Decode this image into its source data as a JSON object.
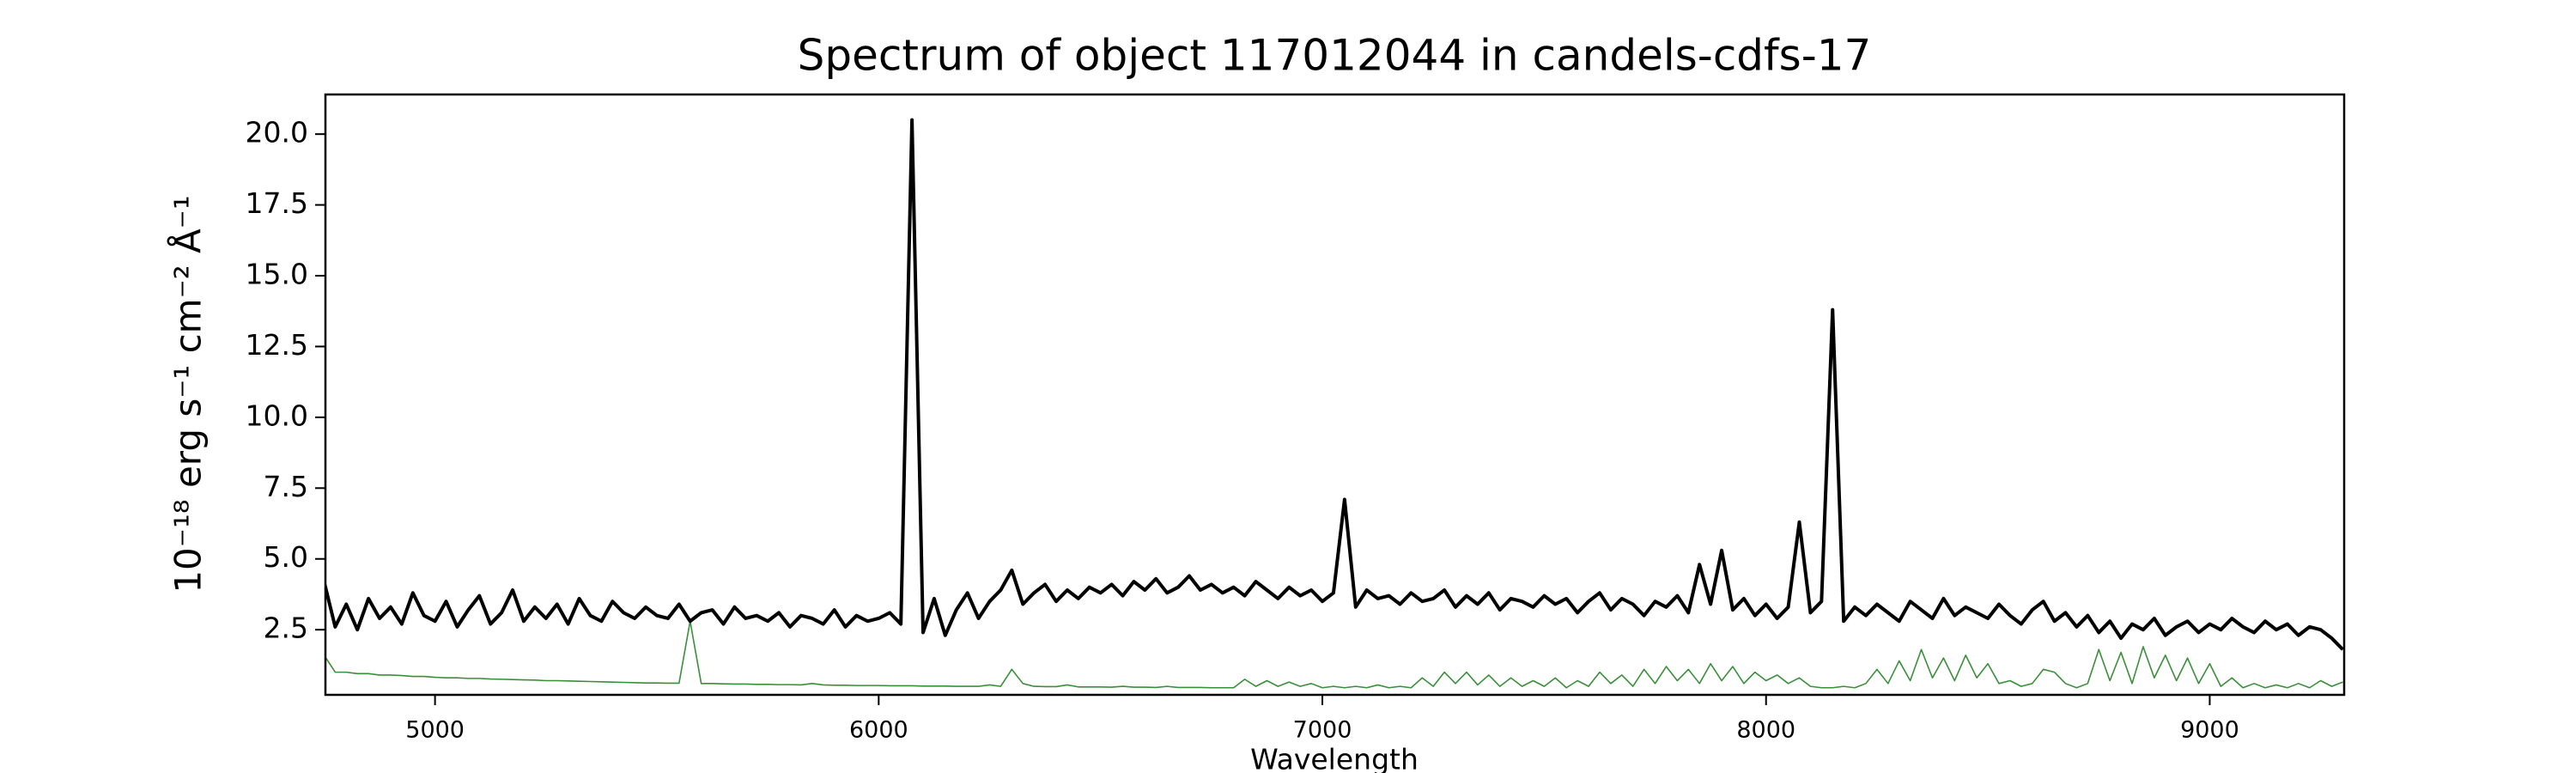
{
  "chart_data": {
    "type": "line",
    "title": "Spectrum of object 117012044 in candels-cdfs-17",
    "x_label": "Wavelength",
    "y_label": "10⁻¹⁸ erg s⁻¹ cm⁻² Å⁻¹",
    "xlim": [
      4753,
      9303
    ],
    "ylim": [
      0.2,
      21.4
    ],
    "xticks": [
      5000,
      6000,
      7000,
      8000,
      9000
    ],
    "yticks": [
      2.5,
      {
        "value": 5,
        "label": "5.0"
      },
      7.5,
      {
        "value": 10,
        "label": "10.0"
      },
      12.5,
      {
        "value": 15,
        "label": "15.0"
      },
      17.5,
      {
        "value": 20,
        "label": "20.0"
      }
    ],
    "x": [
      4750,
      4775,
      4800,
      4825,
      4850,
      4875,
      4900,
      4925,
      4950,
      4975,
      5000,
      5025,
      5050,
      5075,
      5100,
      5125,
      5150,
      5175,
      5200,
      5225,
      5250,
      5275,
      5300,
      5325,
      5350,
      5375,
      5400,
      5425,
      5450,
      5475,
      5500,
      5525,
      5550,
      5575,
      5600,
      5625,
      5650,
      5675,
      5700,
      5725,
      5750,
      5775,
      5800,
      5825,
      5850,
      5875,
      5900,
      5925,
      5950,
      5975,
      6000,
      6025,
      6050,
      6075,
      6100,
      6125,
      6150,
      6175,
      6200,
      6225,
      6250,
      6275,
      6300,
      6325,
      6350,
      6375,
      6400,
      6425,
      6450,
      6475,
      6500,
      6525,
      6550,
      6575,
      6600,
      6625,
      6650,
      6675,
      6700,
      6725,
      6750,
      6775,
      6800,
      6825,
      6850,
      6875,
      6900,
      6925,
      6950,
      6975,
      7000,
      7025,
      7050,
      7075,
      7100,
      7125,
      7150,
      7175,
      7200,
      7225,
      7250,
      7275,
      7300,
      7325,
      7350,
      7375,
      7400,
      7425,
      7450,
      7475,
      7500,
      7525,
      7550,
      7575,
      7600,
      7625,
      7650,
      7675,
      7700,
      7725,
      7750,
      7775,
      7800,
      7825,
      7850,
      7875,
      7900,
      7925,
      7950,
      7975,
      8000,
      8025,
      8050,
      8075,
      8100,
      8125,
      8150,
      8175,
      8200,
      8225,
      8250,
      8275,
      8300,
      8325,
      8350,
      8375,
      8400,
      8425,
      8450,
      8475,
      8500,
      8525,
      8550,
      8575,
      8600,
      8625,
      8650,
      8675,
      8700,
      8725,
      8750,
      8775,
      8800,
      8825,
      8850,
      8875,
      8900,
      8925,
      8950,
      8975,
      9000,
      9025,
      9050,
      9075,
      9100,
      9125,
      9150,
      9175,
      9200,
      9225,
      9250,
      9275,
      9300
    ],
    "series": [
      {
        "color": "#000000",
        "width": 4,
        "values": [
          4.2,
          2.6,
          3.4,
          2.5,
          3.6,
          2.9,
          3.3,
          2.7,
          3.8,
          3.0,
          2.8,
          3.5,
          2.6,
          3.2,
          3.7,
          2.7,
          3.1,
          3.9,
          2.8,
          3.3,
          2.9,
          3.4,
          2.7,
          3.6,
          3.0,
          2.8,
          3.5,
          3.1,
          2.9,
          3.3,
          3.0,
          2.9,
          3.4,
          2.8,
          3.1,
          3.2,
          2.7,
          3.3,
          2.9,
          3.0,
          2.8,
          3.1,
          2.6,
          3.0,
          2.9,
          2.7,
          3.2,
          2.6,
          3.0,
          2.8,
          2.9,
          3.1,
          2.7,
          20.5,
          2.4,
          3.6,
          2.3,
          3.2,
          3.8,
          2.9,
          3.5,
          3.9,
          4.6,
          3.4,
          3.8,
          4.1,
          3.5,
          3.9,
          3.6,
          4.0,
          3.8,
          4.1,
          3.7,
          4.2,
          3.9,
          4.3,
          3.8,
          4.0,
          4.4,
          3.9,
          4.1,
          3.8,
          4.0,
          3.7,
          4.2,
          3.9,
          3.6,
          4.0,
          3.7,
          3.9,
          3.5,
          3.8,
          7.1,
          3.3,
          3.9,
          3.6,
          3.7,
          3.4,
          3.8,
          3.5,
          3.6,
          3.9,
          3.3,
          3.7,
          3.4,
          3.8,
          3.2,
          3.6,
          3.5,
          3.3,
          3.7,
          3.4,
          3.6,
          3.1,
          3.5,
          3.8,
          3.2,
          3.6,
          3.4,
          3.0,
          3.5,
          3.3,
          3.7,
          3.1,
          4.8,
          3.4,
          5.3,
          3.2,
          3.6,
          3.0,
          3.4,
          2.9,
          3.3,
          6.3,
          3.1,
          3.5,
          13.8,
          2.8,
          3.3,
          3.0,
          3.4,
          3.1,
          2.8,
          3.5,
          3.2,
          2.9,
          3.6,
          3.0,
          3.3,
          3.1,
          2.9,
          3.4,
          3.0,
          2.7,
          3.2,
          3.5,
          2.8,
          3.1,
          2.6,
          3.0,
          2.4,
          2.8,
          2.2,
          2.7,
          2.5,
          2.9,
          2.3,
          2.6,
          2.8,
          2.4,
          2.7,
          2.5,
          2.9,
          2.6,
          2.4,
          2.8,
          2.5,
          2.7,
          2.3,
          2.6,
          2.5,
          2.2,
          1.8
        ]
      },
      {
        "color": "#3a8f3a",
        "width": 1.6,
        "values": [
          1.6,
          1.0,
          1.0,
          0.95,
          0.95,
          0.9,
          0.9,
          0.88,
          0.85,
          0.85,
          0.82,
          0.8,
          0.8,
          0.78,
          0.78,
          0.76,
          0.75,
          0.74,
          0.73,
          0.72,
          0.7,
          0.7,
          0.69,
          0.68,
          0.67,
          0.66,
          0.65,
          0.64,
          0.63,
          0.62,
          0.62,
          0.61,
          0.61,
          2.8,
          0.6,
          0.6,
          0.59,
          0.58,
          0.58,
          0.57,
          0.57,
          0.56,
          0.56,
          0.55,
          0.6,
          0.55,
          0.54,
          0.54,
          0.53,
          0.53,
          0.53,
          0.52,
          0.52,
          0.52,
          0.51,
          0.51,
          0.51,
          0.5,
          0.5,
          0.5,
          0.55,
          0.5,
          1.1,
          0.6,
          0.5,
          0.49,
          0.49,
          0.55,
          0.48,
          0.48,
          0.48,
          0.47,
          0.5,
          0.47,
          0.47,
          0.46,
          0.5,
          0.46,
          0.46,
          0.46,
          0.45,
          0.45,
          0.45,
          0.75,
          0.5,
          0.7,
          0.5,
          0.65,
          0.5,
          0.6,
          0.45,
          0.5,
          0.45,
          0.5,
          0.45,
          0.55,
          0.45,
          0.5,
          0.45,
          0.8,
          0.5,
          1.0,
          0.6,
          1.0,
          0.55,
          0.9,
          0.5,
          0.8,
          0.5,
          0.7,
          0.5,
          0.8,
          0.45,
          0.7,
          0.5,
          1.0,
          0.6,
          0.9,
          0.5,
          1.1,
          0.6,
          1.2,
          0.7,
          1.1,
          0.6,
          1.3,
          0.7,
          1.2,
          0.6,
          1.0,
          0.7,
          0.9,
          0.6,
          0.8,
          0.5,
          0.45,
          0.45,
          0.5,
          0.45,
          0.6,
          1.1,
          0.6,
          1.4,
          0.7,
          1.8,
          0.8,
          1.5,
          0.7,
          1.6,
          0.8,
          1.3,
          0.6,
          0.7,
          0.5,
          0.6,
          1.1,
          1.0,
          0.6,
          0.45,
          0.6,
          1.8,
          0.7,
          1.7,
          0.6,
          1.9,
          0.8,
          1.6,
          0.7,
          1.5,
          0.6,
          1.3,
          0.5,
          0.8,
          0.45,
          0.6,
          0.45,
          0.55,
          0.45,
          0.6,
          0.45,
          0.7,
          0.5,
          0.65
        ]
      }
    ]
  }
}
